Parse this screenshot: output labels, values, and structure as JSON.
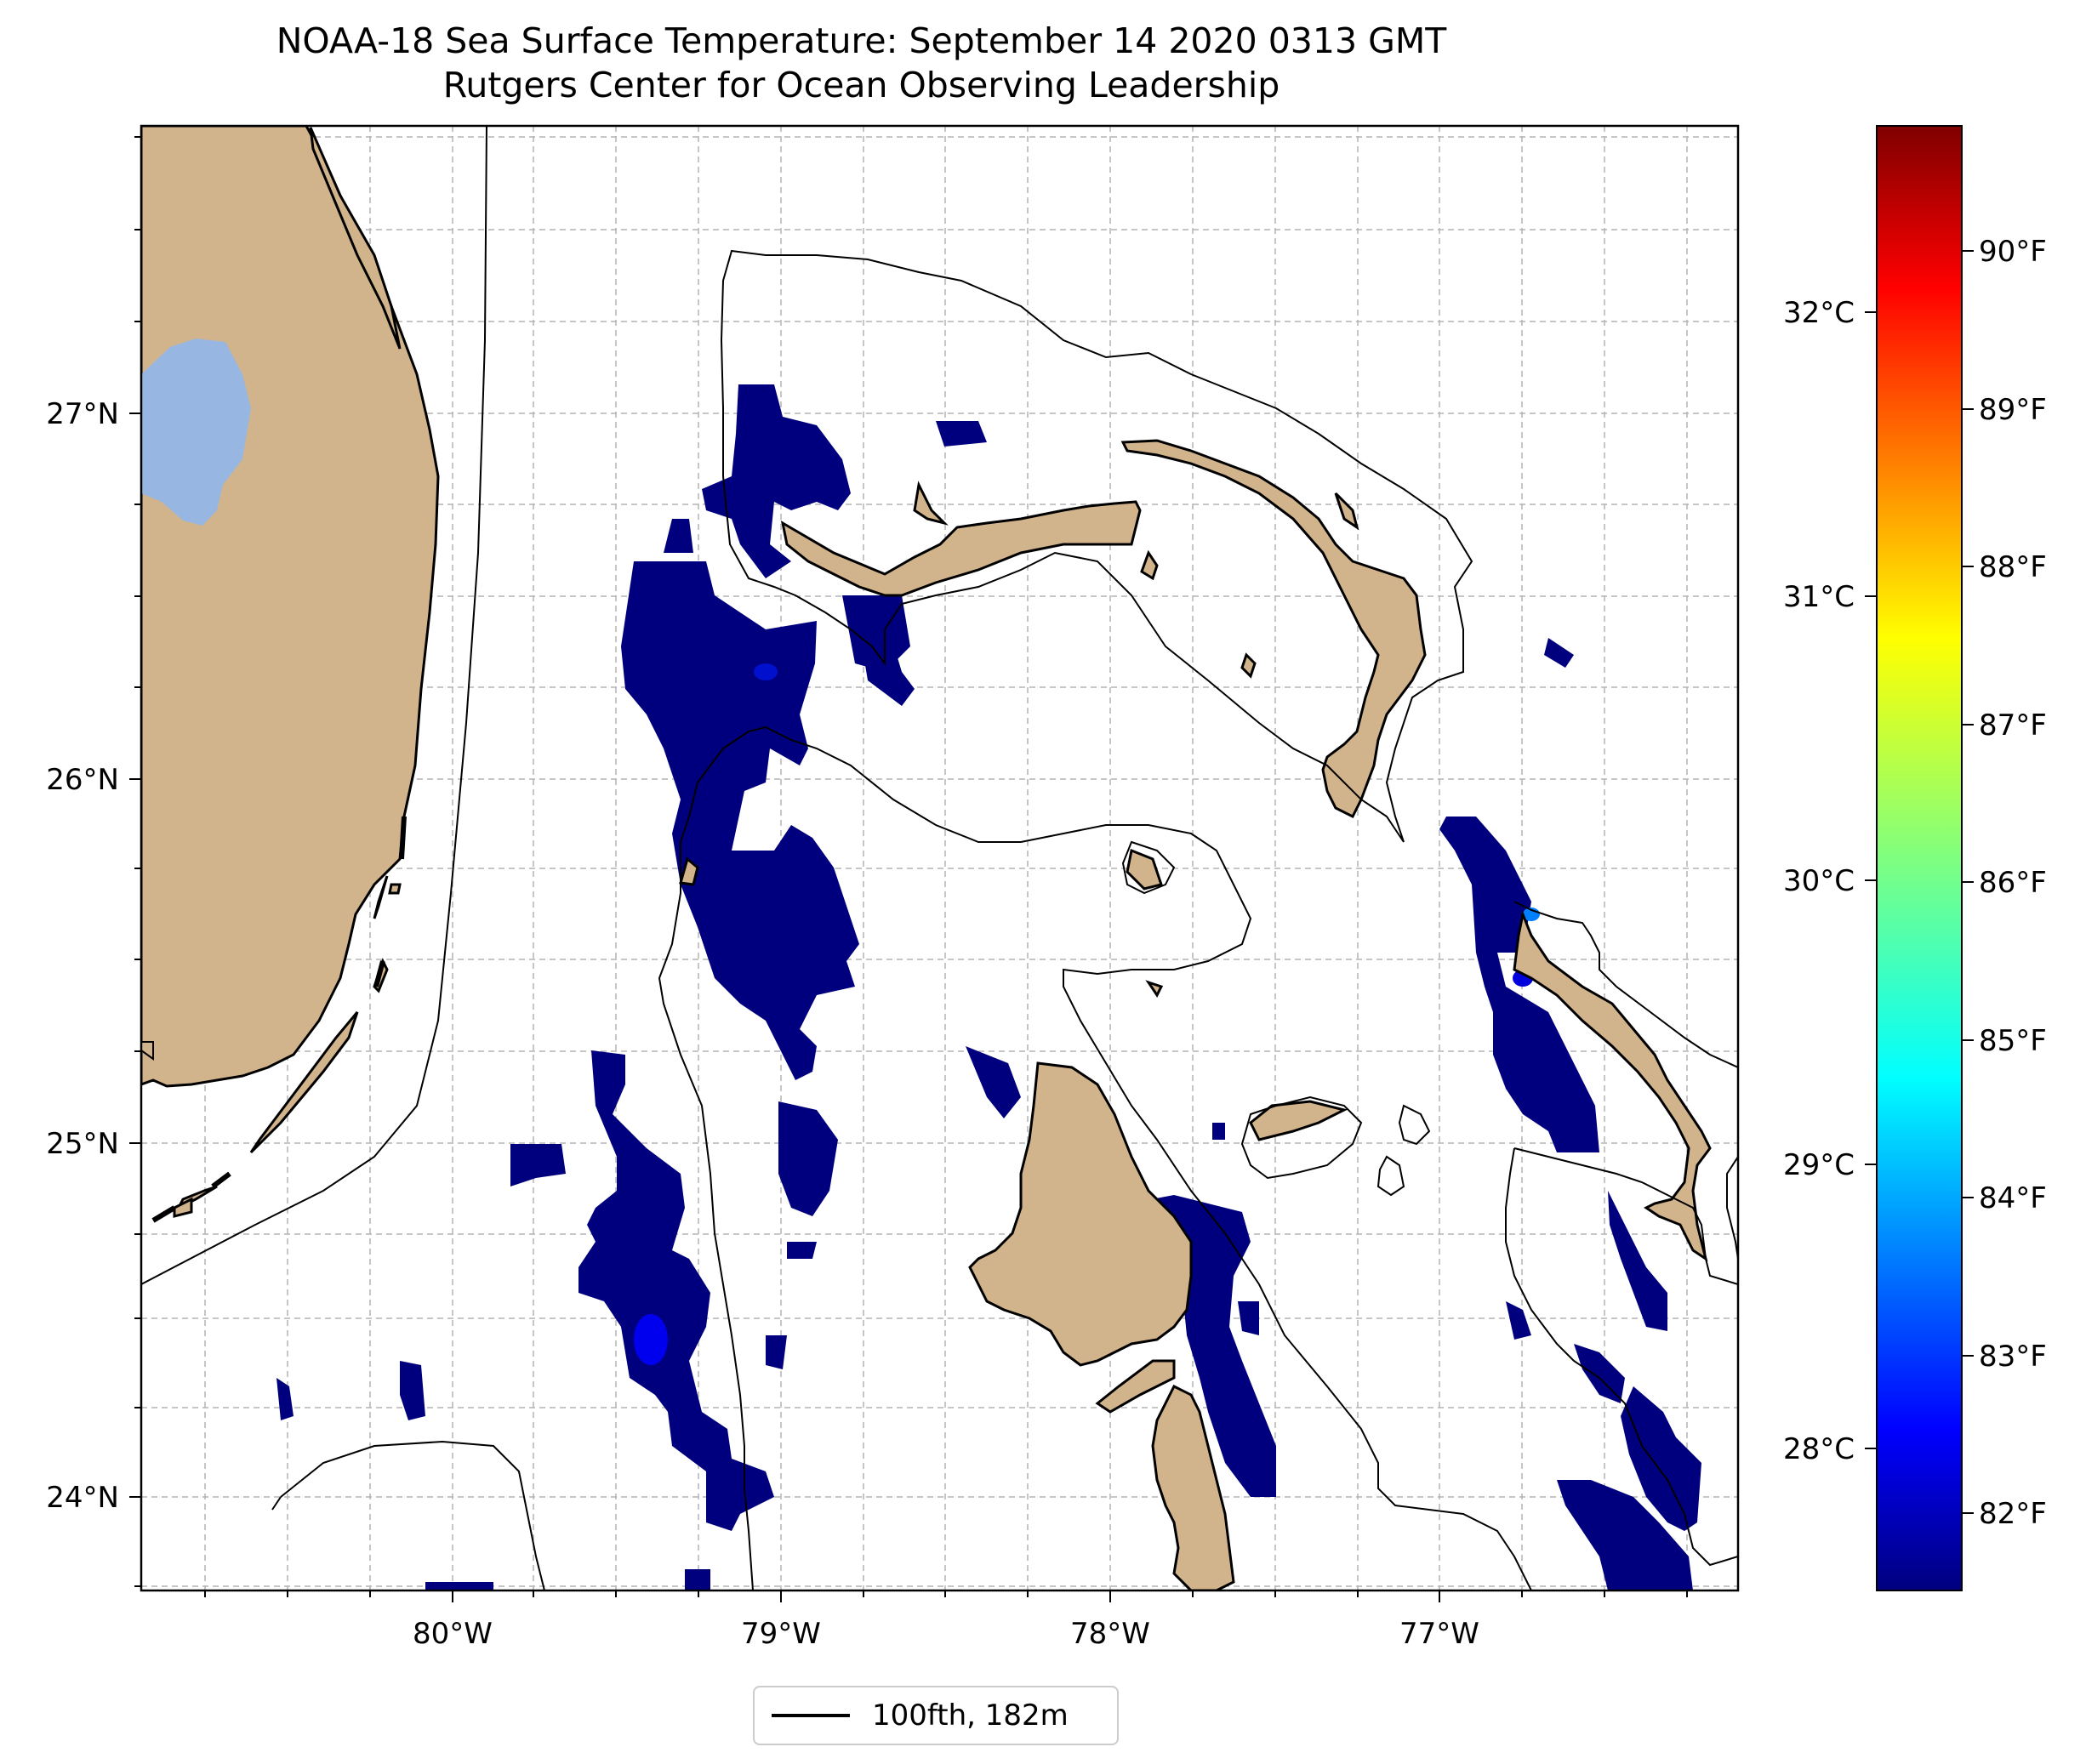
{
  "title": {
    "line1": "NOAA-18 Sea Surface Temperature: September 14 2020 0313 GMT",
    "line2": "Rutgers Center for Ocean Observing Leadership"
  },
  "map": {
    "lon_ticks": [
      "80°W",
      "79°W",
      "78°W",
      "77°W"
    ],
    "lat_ticks": [
      "27°N",
      "26°N",
      "25°N",
      "24°N"
    ],
    "land_color": "#d2b48c",
    "lake_color": "#97b6e1",
    "cold_water_color": "#00007f",
    "grid": "dashed light gray"
  },
  "colorbar": {
    "celsius_ticks": [
      "32°C",
      "31°C",
      "30°C",
      "29°C",
      "28°C"
    ],
    "fahrenheit_ticks": [
      "90°F",
      "89°F",
      "88°F",
      "87°F",
      "86°F",
      "85°F",
      "84°F",
      "83°F",
      "82°F"
    ],
    "colormap": "jet"
  },
  "legend": {
    "label": "100fth, 182m"
  }
}
